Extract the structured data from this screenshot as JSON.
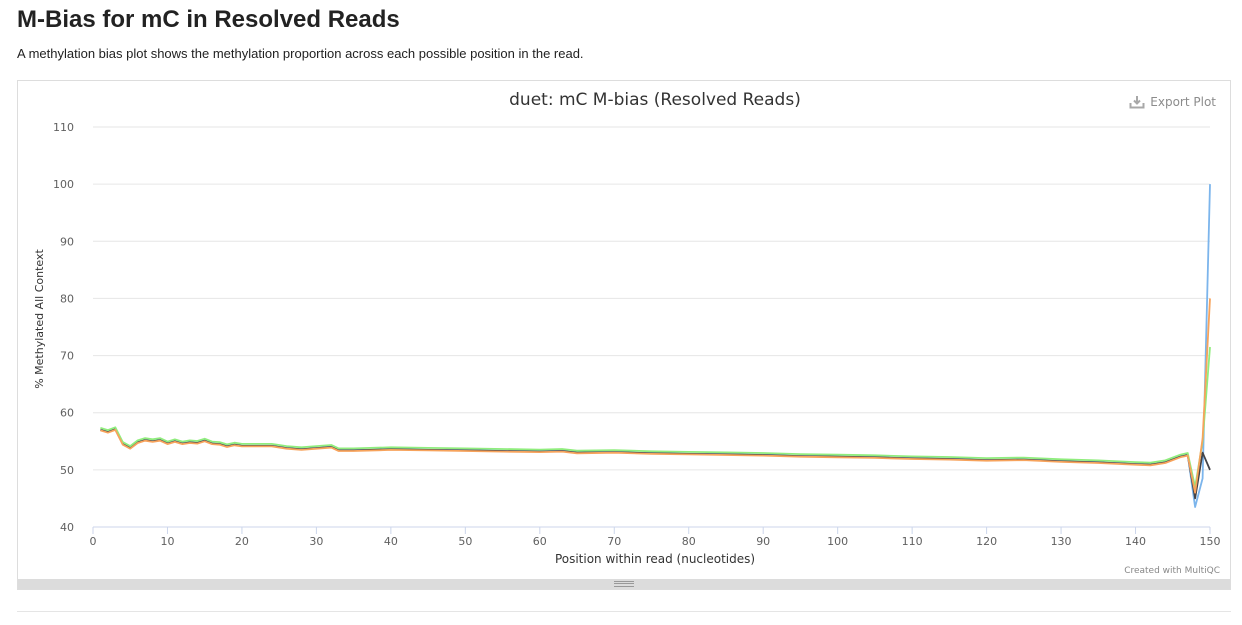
{
  "page": {
    "title": "M-Bias for mC in Resolved Reads",
    "description": "A methylation bias plot shows the methylation proportion across each possible position in the read."
  },
  "toolbar": {
    "export_label": "Export Plot",
    "export_icon": "download-icon"
  },
  "footer": {
    "credit": "Created with MultiQC"
  },
  "colors": {
    "series": [
      "#7cb5ec",
      "#434348",
      "#90ed7d",
      "#f7a35c"
    ],
    "grid": "#e6e6e6",
    "axis_text": "#606060"
  },
  "chart_data": {
    "type": "line",
    "title": "duet: mC M-bias (Resolved Reads)",
    "xlabel": "Position within read (nucleotides)",
    "ylabel": "% Methylated All Context",
    "xlim": [
      0,
      150
    ],
    "ylim": [
      40,
      110
    ],
    "xticks": [
      0,
      10,
      20,
      30,
      40,
      50,
      60,
      70,
      80,
      90,
      100,
      110,
      120,
      130,
      140,
      150
    ],
    "yticks": [
      40,
      50,
      60,
      70,
      80,
      90,
      100,
      110
    ],
    "grid": true,
    "legend": "none",
    "base_curve": [
      [
        1,
        57.0
      ],
      [
        2,
        56.6
      ],
      [
        3,
        57.1
      ],
      [
        4,
        54.5
      ],
      [
        5,
        53.8
      ],
      [
        6,
        54.8
      ],
      [
        7,
        55.2
      ],
      [
        8,
        55.0
      ],
      [
        9,
        55.2
      ],
      [
        10,
        54.6
      ],
      [
        11,
        55.0
      ],
      [
        12,
        54.6
      ],
      [
        13,
        54.8
      ],
      [
        14,
        54.7
      ],
      [
        15,
        55.1
      ],
      [
        16,
        54.6
      ],
      [
        17,
        54.5
      ],
      [
        18,
        54.1
      ],
      [
        19,
        54.4
      ],
      [
        20,
        54.2
      ],
      [
        22,
        54.2
      ],
      [
        24,
        54.2
      ],
      [
        26,
        53.8
      ],
      [
        28,
        53.6
      ],
      [
        30,
        53.8
      ],
      [
        32,
        54.0
      ],
      [
        33,
        53.4
      ],
      [
        35,
        53.4
      ],
      [
        40,
        53.6
      ],
      [
        45,
        53.5
      ],
      [
        50,
        53.4
      ],
      [
        55,
        53.3
      ],
      [
        60,
        53.2
      ],
      [
        63,
        53.3
      ],
      [
        65,
        53.0
      ],
      [
        70,
        53.1
      ],
      [
        75,
        52.9
      ],
      [
        80,
        52.8
      ],
      [
        85,
        52.7
      ],
      [
        90,
        52.6
      ],
      [
        95,
        52.4
      ],
      [
        100,
        52.3
      ],
      [
        105,
        52.2
      ],
      [
        110,
        52.0
      ],
      [
        115,
        51.9
      ],
      [
        120,
        51.7
      ],
      [
        125,
        51.8
      ],
      [
        130,
        51.5
      ],
      [
        135,
        51.3
      ],
      [
        140,
        51.0
      ],
      [
        142,
        50.9
      ],
      [
        144,
        51.3
      ],
      [
        146,
        52.3
      ],
      [
        147,
        52.6
      ]
    ],
    "series": [
      {
        "offset": 0.05,
        "tail": [
          [
            148,
            43.5
          ],
          [
            149,
            48.5
          ],
          [
            150,
            100.0
          ]
        ]
      },
      {
        "offset": 0.0,
        "tail": [
          [
            148,
            45.0
          ],
          [
            149,
            53.0
          ],
          [
            150,
            50.0
          ]
        ]
      },
      {
        "offset": 0.35,
        "tail": [
          [
            148,
            47.0
          ],
          [
            149,
            55.0
          ],
          [
            150,
            71.5
          ]
        ]
      },
      {
        "offset": -0.1,
        "tail": [
          [
            148,
            46.0
          ],
          [
            149,
            55.5
          ],
          [
            150,
            80.0
          ]
        ]
      }
    ]
  }
}
